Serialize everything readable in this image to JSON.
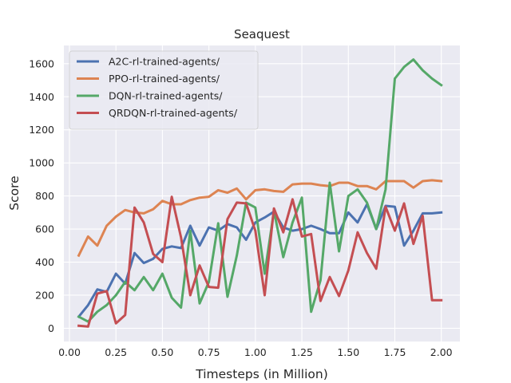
{
  "chart_data": {
    "type": "line",
    "title": "Seaquest",
    "xlabel": "Timesteps (in Million)",
    "ylabel": "Score",
    "xlim": [
      -0.03,
      2.1
    ],
    "ylim": [
      -80,
      1710
    ],
    "x_ticks": [
      0.0,
      0.25,
      0.5,
      0.75,
      1.0,
      1.25,
      1.5,
      1.75,
      2.0
    ],
    "x_tick_labels": [
      "0.00",
      "0.25",
      "0.50",
      "0.75",
      "1.00",
      "1.25",
      "1.50",
      "1.75",
      "2.00"
    ],
    "y_ticks": [
      0,
      200,
      400,
      600,
      800,
      1000,
      1200,
      1400,
      1600
    ],
    "y_tick_labels": [
      "0",
      "200",
      "400",
      "600",
      "800",
      "1000",
      "1200",
      "1400",
      "1600"
    ],
    "grid": true,
    "legend_position": "top-left",
    "x": [
      0.05,
      0.1,
      0.15,
      0.2,
      0.25,
      0.3,
      0.35,
      0.4,
      0.45,
      0.5,
      0.55,
      0.6,
      0.65,
      0.7,
      0.75,
      0.8,
      0.85,
      0.9,
      0.95,
      1.0,
      1.05,
      1.1,
      1.15,
      1.2,
      1.25,
      1.3,
      1.35,
      1.4,
      1.45,
      1.5,
      1.55,
      1.6,
      1.65,
      1.7,
      1.75,
      1.8,
      1.85,
      1.9,
      1.95,
      2.0
    ],
    "series": [
      {
        "name": "A2C-rl-trained-agents/",
        "color": "#4c72b0",
        "values": [
          70,
          140,
          235,
          220,
          330,
          270,
          455,
          395,
          420,
          480,
          495,
          485,
          620,
          500,
          610,
          590,
          630,
          610,
          535,
          640,
          670,
          705,
          610,
          590,
          600,
          620,
          600,
          575,
          575,
          700,
          640,
          750,
          600,
          740,
          735,
          500,
          590,
          695,
          695,
          700
        ]
      },
      {
        "name": "PPO-rl-trained-agents/",
        "color": "#dd8452",
        "values": [
          440,
          555,
          500,
          620,
          675,
          715,
          700,
          695,
          720,
          770,
          750,
          750,
          775,
          790,
          795,
          835,
          820,
          845,
          780,
          835,
          840,
          830,
          825,
          870,
          875,
          875,
          865,
          860,
          880,
          880,
          860,
          860,
          840,
          890,
          890,
          890,
          850,
          890,
          895,
          890
        ]
      },
      {
        "name": "DQN-rl-trained-agents/",
        "color": "#55a868",
        "values": [
          70,
          40,
          100,
          140,
          200,
          280,
          230,
          310,
          230,
          330,
          185,
          125,
          590,
          150,
          280,
          635,
          190,
          440,
          760,
          730,
          330,
          710,
          430,
          640,
          790,
          100,
          290,
          880,
          465,
          800,
          840,
          760,
          600,
          840,
          1510,
          1580,
          1625,
          1560,
          1510,
          1470
        ]
      },
      {
        "name": "QRDQN-rl-trained-agents/",
        "color": "#c44e52",
        "values": [
          15,
          10,
          210,
          225,
          30,
          80,
          730,
          640,
          450,
          400,
          795,
          550,
          200,
          380,
          250,
          245,
          660,
          760,
          755,
          590,
          200,
          725,
          580,
          780,
          555,
          570,
          165,
          310,
          195,
          350,
          580,
          455,
          360,
          735,
          590,
          755,
          510,
          680,
          170,
          170
        ]
      }
    ]
  }
}
